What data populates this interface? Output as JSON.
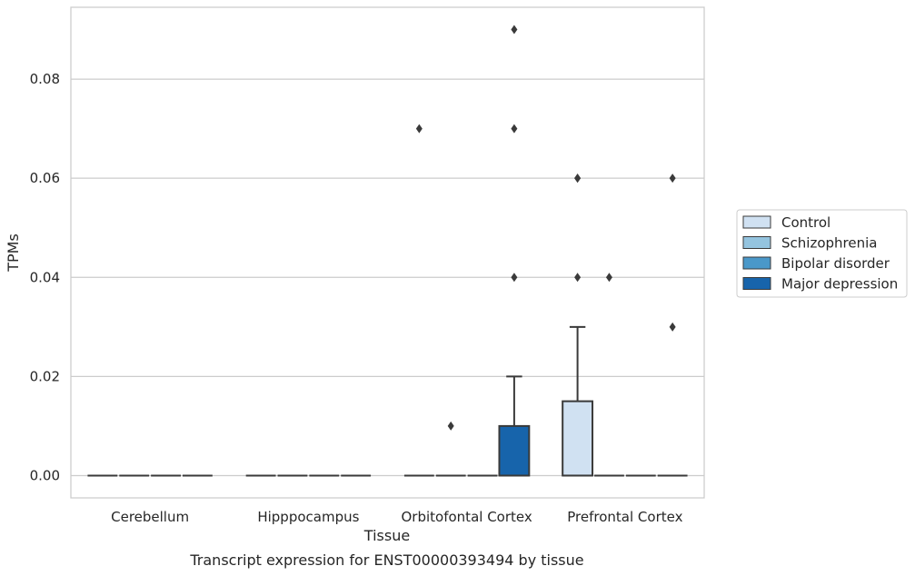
{
  "chart_data": {
    "type": "box",
    "title": "",
    "xlabel": "Tissue",
    "ylabel": "TPMs",
    "caption": "Transcript expression for ENST00000393494 by tissue",
    "categories": [
      "Cerebellum",
      "Hipppocampus",
      "Orbitofontal Cortex",
      "Prefrontal Cortex"
    ],
    "ylim": [
      -0.0045,
      0.0945
    ],
    "yticks": [
      "0.00",
      "0.02",
      "0.04",
      "0.06",
      "0.08"
    ],
    "grid": "horizontal",
    "legend_position": "right",
    "series": [
      {
        "name": "Control",
        "color": "#d0e1f2",
        "boxes": [
          {
            "category": "Cerebellum",
            "q1": 0,
            "median": 0,
            "q3": 0,
            "whisker_low": 0,
            "whisker_high": 0,
            "outliers": []
          },
          {
            "category": "Hipppocampus",
            "q1": 0,
            "median": 0,
            "q3": 0,
            "whisker_low": 0,
            "whisker_high": 0,
            "outliers": []
          },
          {
            "category": "Orbitofontal Cortex",
            "q1": 0,
            "median": 0,
            "q3": 0,
            "whisker_low": 0,
            "whisker_high": 0,
            "outliers": [
              0.07
            ]
          },
          {
            "category": "Prefrontal Cortex",
            "q1": 0,
            "median": 0,
            "q3": 0.015,
            "whisker_low": 0,
            "whisker_high": 0.03,
            "outliers": [
              0.04,
              0.06,
              0.06
            ]
          }
        ]
      },
      {
        "name": "Schizophrenia",
        "color": "#94c4df",
        "boxes": [
          {
            "category": "Cerebellum",
            "q1": 0,
            "median": 0,
            "q3": 0,
            "whisker_low": 0,
            "whisker_high": 0,
            "outliers": []
          },
          {
            "category": "Hipppocampus",
            "q1": 0,
            "median": 0,
            "q3": 0,
            "whisker_low": 0,
            "whisker_high": 0,
            "outliers": []
          },
          {
            "category": "Orbitofontal Cortex",
            "q1": 0,
            "median": 0,
            "q3": 0,
            "whisker_low": 0,
            "whisker_high": 0,
            "outliers": [
              0.01
            ]
          },
          {
            "category": "Prefrontal Cortex",
            "q1": 0,
            "median": 0,
            "q3": 0,
            "whisker_low": 0,
            "whisker_high": 0,
            "outliers": [
              0.04
            ]
          }
        ]
      },
      {
        "name": "Bipolar disorder",
        "color": "#4a98c9",
        "boxes": [
          {
            "category": "Cerebellum",
            "q1": 0,
            "median": 0,
            "q3": 0,
            "whisker_low": 0,
            "whisker_high": 0,
            "outliers": []
          },
          {
            "category": "Hipppocampus",
            "q1": 0,
            "median": 0,
            "q3": 0,
            "whisker_low": 0,
            "whisker_high": 0,
            "outliers": []
          },
          {
            "category": "Orbitofontal Cortex",
            "q1": 0,
            "median": 0,
            "q3": 0,
            "whisker_low": 0,
            "whisker_high": 0,
            "outliers": []
          },
          {
            "category": "Prefrontal Cortex",
            "q1": 0,
            "median": 0,
            "q3": 0,
            "whisker_low": 0,
            "whisker_high": 0,
            "outliers": []
          }
        ]
      },
      {
        "name": "Major depression",
        "color": "#1764ab",
        "boxes": [
          {
            "category": "Cerebellum",
            "q1": 0,
            "median": 0,
            "q3": 0,
            "whisker_low": 0,
            "whisker_high": 0,
            "outliers": []
          },
          {
            "category": "Hipppocampus",
            "q1": 0,
            "median": 0,
            "q3": 0,
            "whisker_low": 0,
            "whisker_high": 0,
            "outliers": []
          },
          {
            "category": "Orbitofontal Cortex",
            "q1": 0,
            "median": 0,
            "q3": 0.01,
            "whisker_low": 0,
            "whisker_high": 0.02,
            "outliers": [
              0.04,
              0.07,
              0.09
            ]
          },
          {
            "category": "Prefrontal Cortex",
            "q1": 0,
            "median": 0,
            "q3": 0,
            "whisker_low": 0,
            "whisker_high": 0,
            "outliers": [
              0.03,
              0.06
            ]
          }
        ]
      }
    ]
  }
}
